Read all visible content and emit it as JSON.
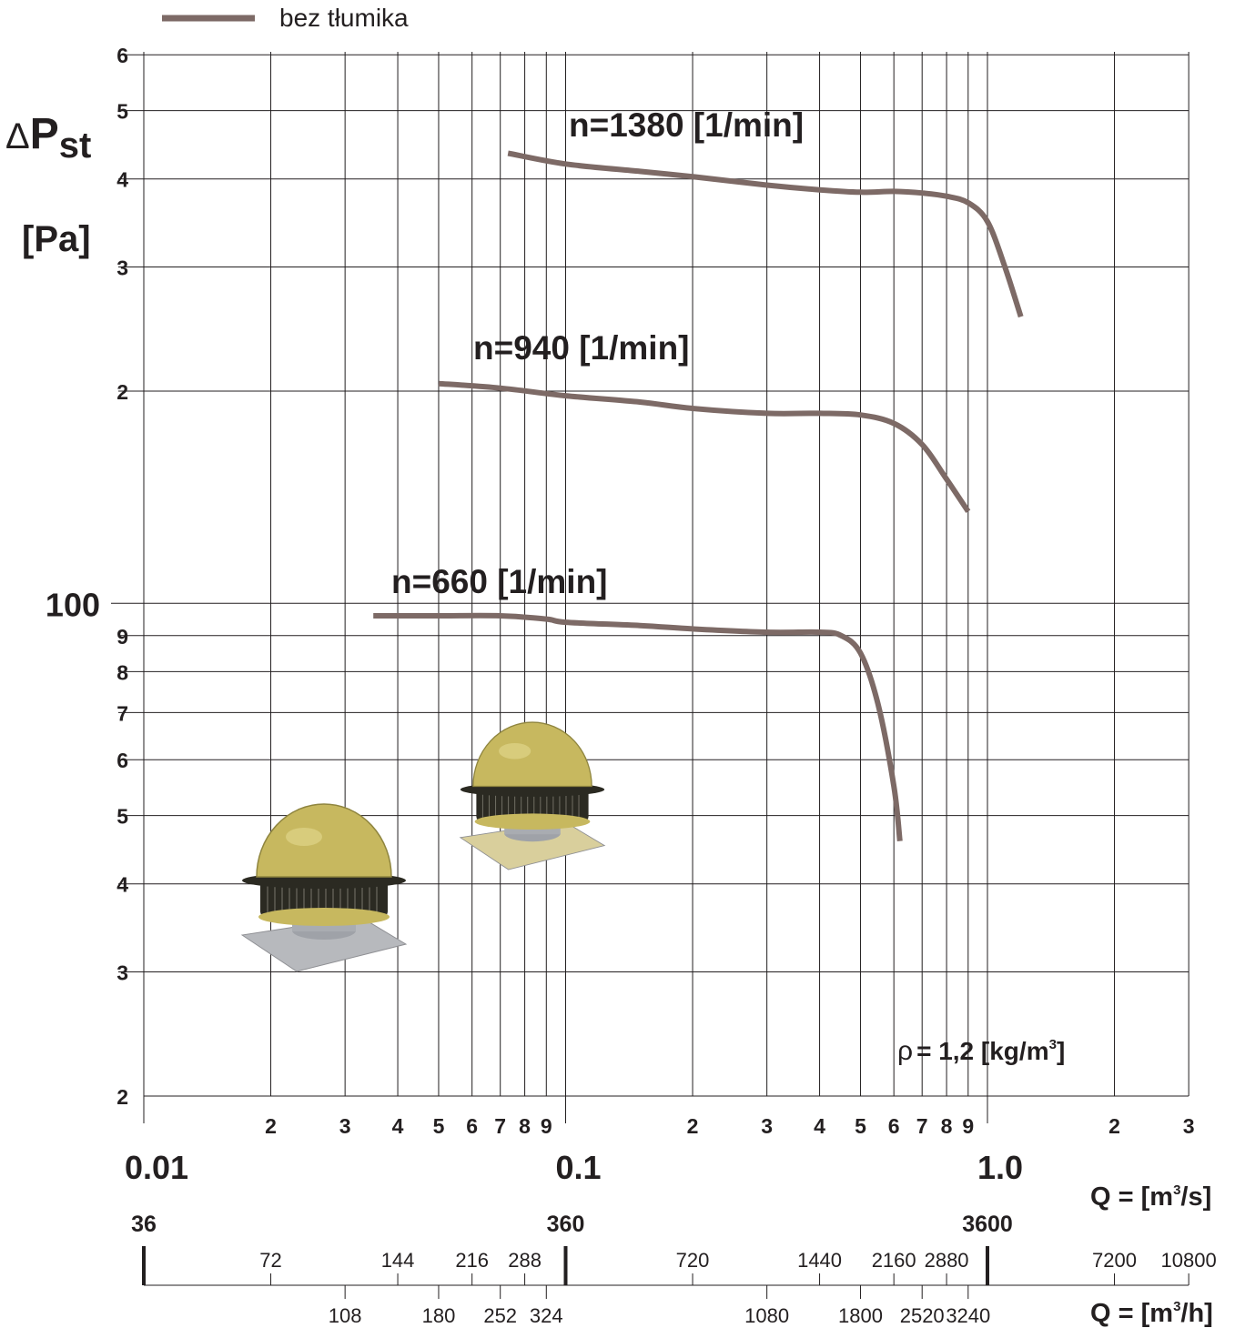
{
  "colors": {
    "curve": "#7d6a66",
    "grid": "#231f20",
    "text": "#231f20",
    "fan_body": "#c7b85f",
    "fan_dark": "#2b2a22",
    "fan_base": "#b7b9bd",
    "fan_base_tan": "#d9cf9c"
  },
  "legend": {
    "label": "bez tłumika",
    "position": "top-left"
  },
  "annotation_rho": {
    "symbol": "ρ",
    "text": "= 1,2 [kg/m",
    "sup": "3",
    "close": "]"
  },
  "y_axis": {
    "delta": "Δ",
    "symbol": "P",
    "subscript": "st",
    "unit": "[Pa]"
  },
  "x_axis": {
    "unit_prefix": "Q = [m",
    "unit_sup": "3",
    "unit_suffix_s": "/s]",
    "unit_suffix_h": "/h]",
    "major_labels": [
      "0.01",
      "0.1",
      "1.0"
    ],
    "minor_labels": [
      "2",
      "3",
      "4",
      "5",
      "6",
      "7",
      "8",
      "9",
      "2",
      "3",
      "4",
      "5",
      "6",
      "7",
      "8",
      "9",
      "2",
      "3"
    ],
    "m3h_major": [
      "36",
      "360",
      "3600"
    ],
    "m3h_upper": [
      "72",
      "144",
      "216",
      "288",
      "720",
      "1440",
      "2160",
      "2880",
      "7200",
      "10800"
    ],
    "m3h_lower": [
      "108",
      "180",
      "252",
      "324",
      "1080",
      "1800",
      "2520",
      "3240"
    ]
  },
  "y_tick_labels": {
    "major": "100",
    "minor": [
      "2",
      "3",
      "4",
      "5",
      "6",
      "7",
      "8",
      "9",
      "2",
      "3",
      "4",
      "5",
      "6"
    ]
  },
  "chart_data": {
    "type": "line",
    "x_scale": "log",
    "y_scale": "log",
    "xlim": [
      0.01,
      3
    ],
    "ylim": [
      20,
      600
    ],
    "xlabel": "Q = [m3/s]",
    "ylabel": "ΔPst [Pa]",
    "grid": true,
    "legend": [
      "bez tłumika"
    ],
    "series": [
      {
        "name": "n=1380 [1/min]",
        "x": [
          0.073,
          0.1,
          0.15,
          0.2,
          0.3,
          0.4,
          0.5,
          0.6,
          0.7,
          0.8,
          0.9,
          1.0,
          1.1,
          1.2
        ],
        "y": [
          435,
          420,
          410,
          403,
          392,
          386,
          383,
          384,
          382,
          378,
          370,
          348,
          300,
          255
        ]
      },
      {
        "name": "n=940 [1/min]",
        "x": [
          0.05,
          0.07,
          0.1,
          0.15,
          0.2,
          0.3,
          0.4,
          0.5,
          0.6,
          0.7,
          0.8,
          0.9
        ],
        "y": [
          205,
          202,
          197,
          193,
          189,
          186,
          186,
          185,
          180,
          168,
          150,
          135
        ]
      },
      {
        "name": "n=660 [1/min]",
        "x": [
          0.035,
          0.05,
          0.07,
          0.09,
          0.1,
          0.15,
          0.2,
          0.3,
          0.4,
          0.45,
          0.5,
          0.55,
          0.6,
          0.62
        ],
        "y": [
          96,
          96,
          96,
          95,
          94,
          93,
          92,
          91,
          91,
          90,
          85,
          72,
          55,
          46
        ]
      }
    ]
  }
}
